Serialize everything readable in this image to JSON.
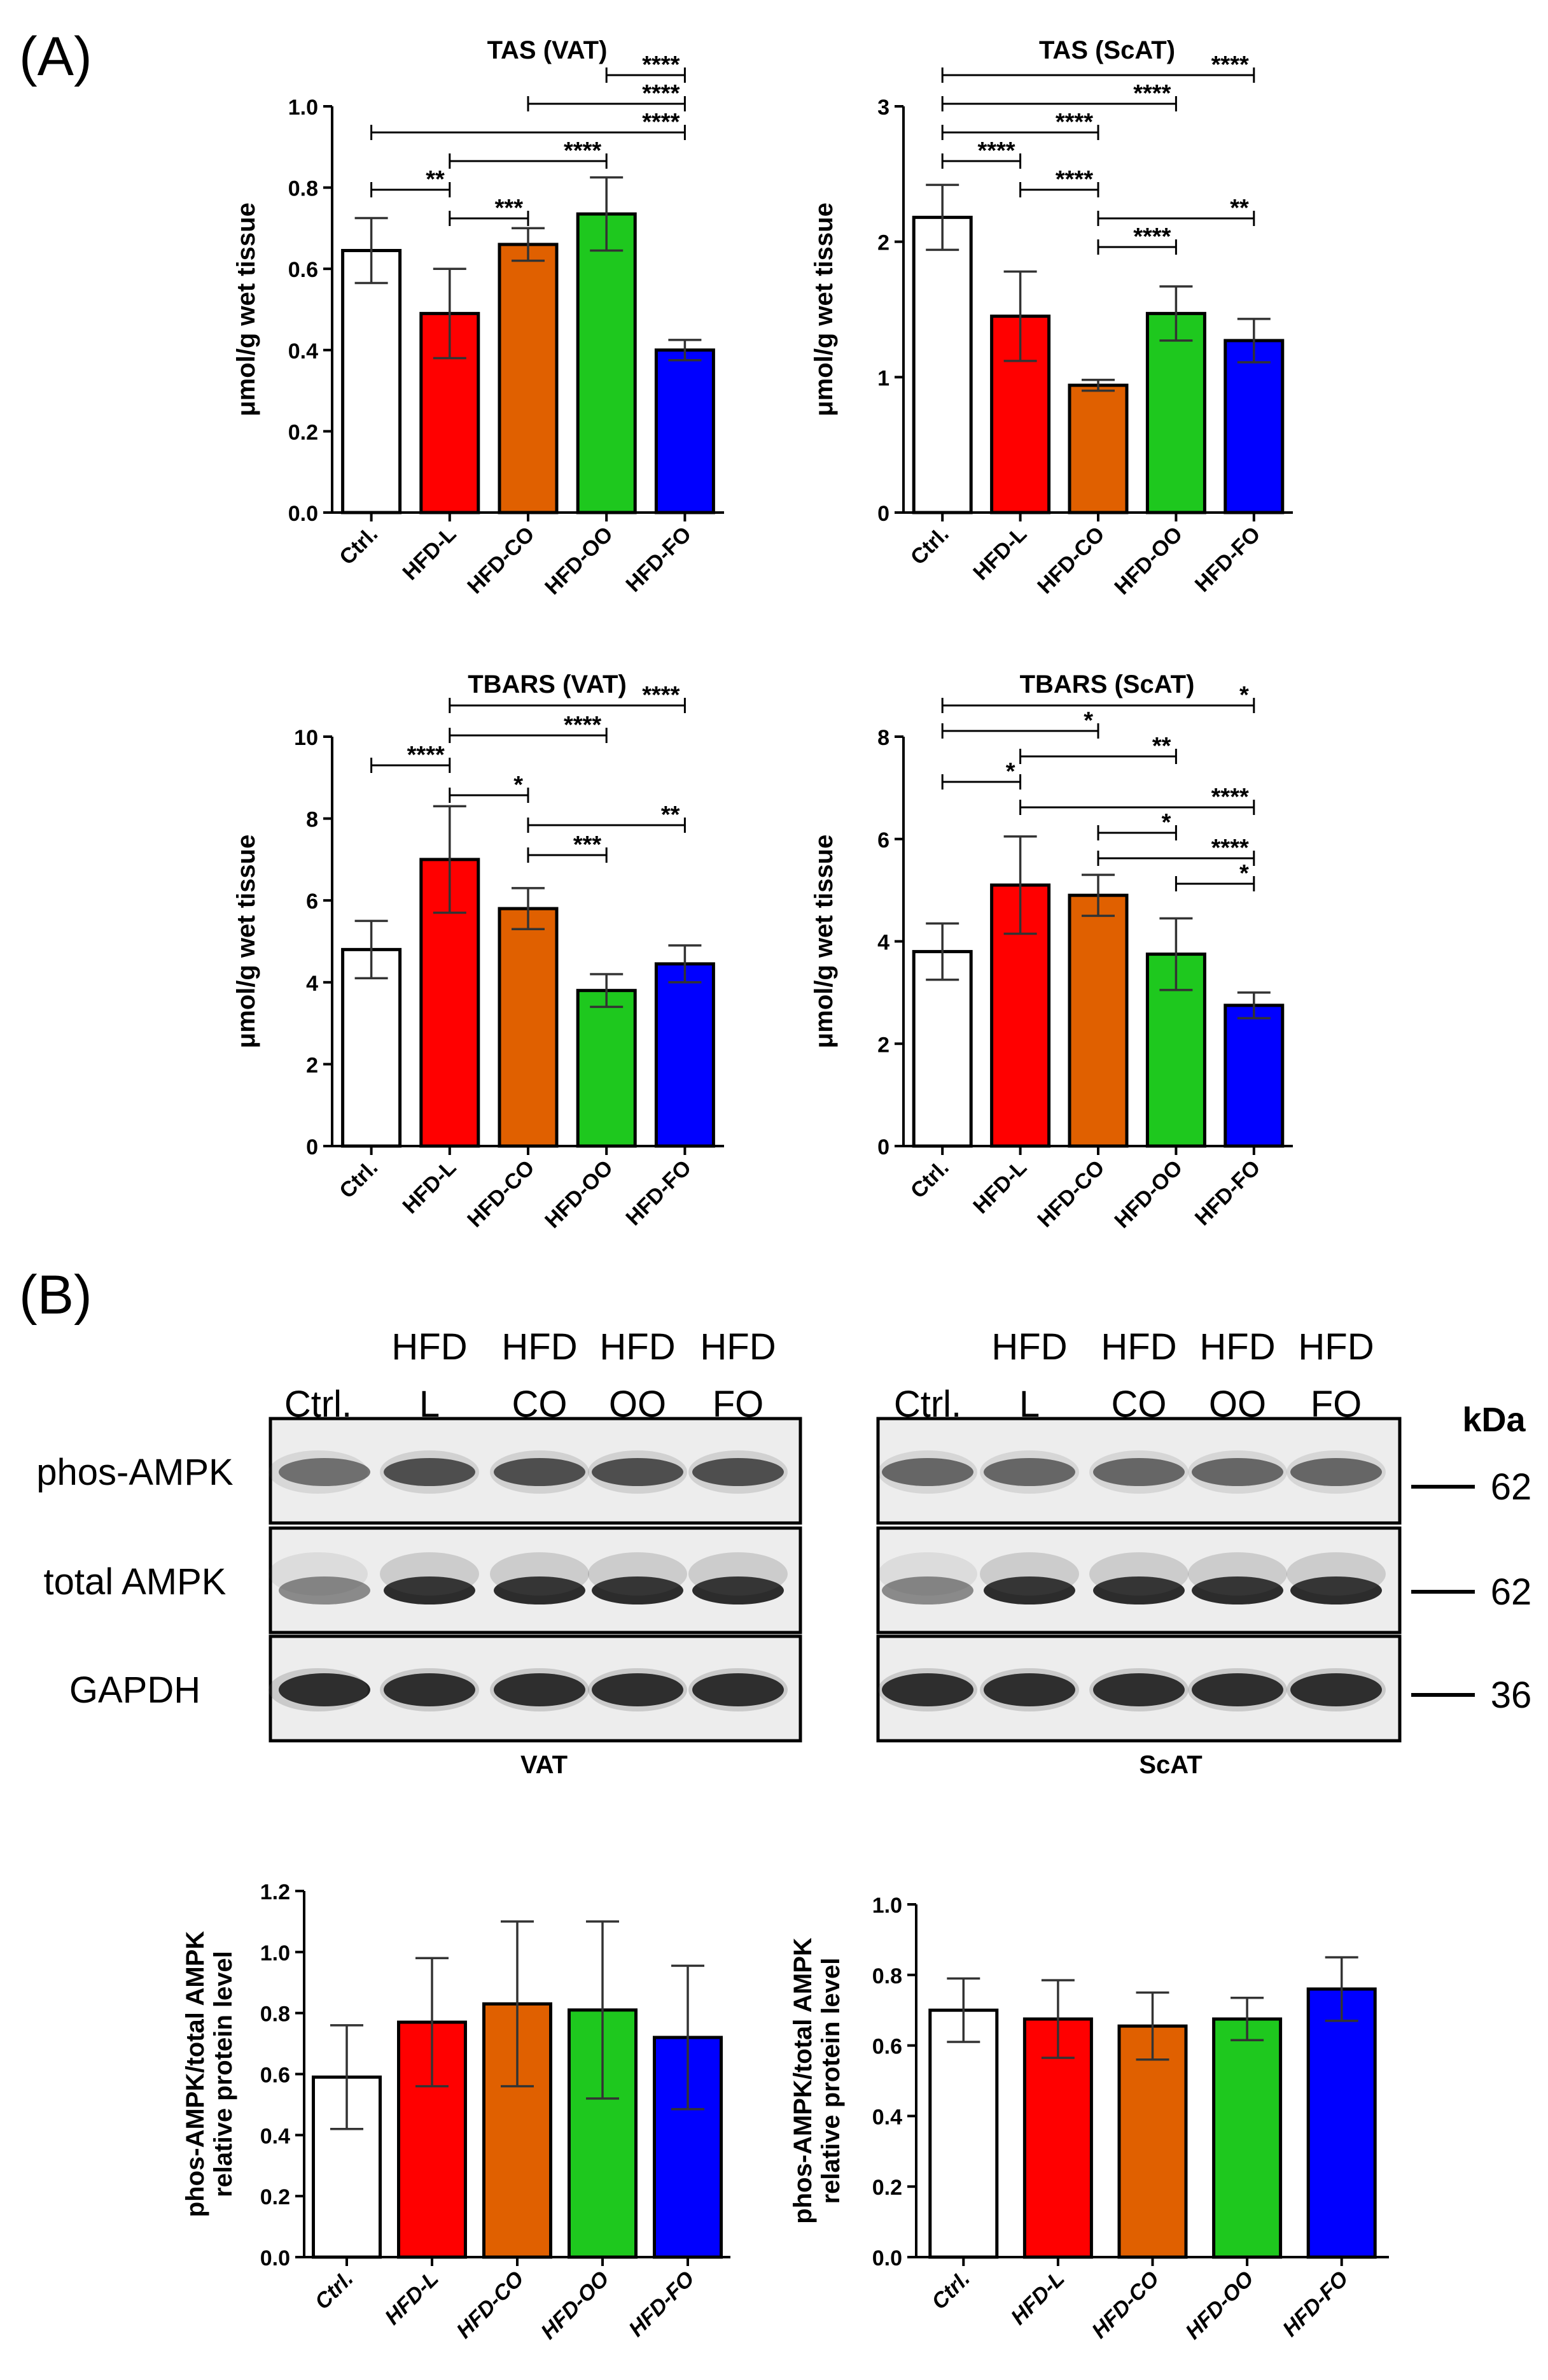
{
  "panel_labels": {
    "a": "(A)",
    "b": "(B)"
  },
  "colors": {
    "Ctrl.": "#ffffff",
    "HFD-L": "#ff0000",
    "HFD-CO": "#e06000",
    "HFD-OO": "#1ec81e",
    "HFD-FO": "#0000ff"
  },
  "chart_data": [
    {
      "type": "bar",
      "title": "TAS (VAT)",
      "ylabel": "μmol/g wet tissue",
      "categories": [
        "Ctrl.",
        "HFD-L",
        "HFD-CO",
        "HFD-OO",
        "HFD-FO"
      ],
      "values": [
        0.645,
        0.49,
        0.66,
        0.735,
        0.4
      ],
      "errors": [
        0.08,
        0.11,
        0.04,
        0.09,
        0.025
      ],
      "ylim": [
        0,
        1.0
      ],
      "yticks": [
        "0.0",
        "0.2",
        "0.4",
        "0.6",
        "0.8",
        "1.0"
      ],
      "significance": [
        {
          "from": 3,
          "to": 4,
          "label": "****"
        },
        {
          "from": 2,
          "to": 4,
          "label": "****"
        },
        {
          "from": 0,
          "to": 4,
          "label": "****"
        },
        {
          "from": 1,
          "to": 3,
          "label": "****"
        },
        {
          "from": 0,
          "to": 1,
          "label": "**"
        },
        {
          "from": 1,
          "to": 2,
          "label": "***"
        }
      ]
    },
    {
      "type": "bar",
      "title": "TAS (ScAT)",
      "ylabel": "μmol/g wet tissue",
      "categories": [
        "Ctrl.",
        "HFD-L",
        "HFD-CO",
        "HFD-OO",
        "HFD-FO"
      ],
      "values": [
        2.18,
        1.45,
        0.94,
        1.47,
        1.27
      ],
      "errors": [
        0.24,
        0.33,
        0.04,
        0.2,
        0.16
      ],
      "ylim": [
        0,
        3
      ],
      "yticks": [
        "0",
        "1",
        "2",
        "3"
      ],
      "significance": [
        {
          "from": 0,
          "to": 4,
          "label": "****"
        },
        {
          "from": 0,
          "to": 3,
          "label": "****"
        },
        {
          "from": 0,
          "to": 2,
          "label": "****"
        },
        {
          "from": 0,
          "to": 1,
          "label": "****"
        },
        {
          "from": 1,
          "to": 2,
          "label": "****"
        },
        {
          "from": 2,
          "to": 4,
          "label": "**"
        },
        {
          "from": 2,
          "to": 3,
          "label": "****"
        }
      ]
    },
    {
      "type": "bar",
      "title": "TBARS (VAT)",
      "ylabel": "μmol/g wet tissue",
      "categories": [
        "Ctrl.",
        "HFD-L",
        "HFD-CO",
        "HFD-OO",
        "HFD-FO"
      ],
      "values": [
        4.8,
        7.0,
        5.8,
        3.8,
        4.45
      ],
      "errors": [
        0.7,
        1.3,
        0.5,
        0.4,
        0.45
      ],
      "ylim": [
        0,
        10
      ],
      "yticks": [
        "0",
        "2",
        "4",
        "6",
        "8",
        "10"
      ],
      "significance": [
        {
          "from": 1,
          "to": 4,
          "label": "****"
        },
        {
          "from": 1,
          "to": 3,
          "label": "****"
        },
        {
          "from": 0,
          "to": 1,
          "label": "****"
        },
        {
          "from": 1,
          "to": 2,
          "label": "*"
        },
        {
          "from": 2,
          "to": 4,
          "label": "**"
        },
        {
          "from": 2,
          "to": 3,
          "label": "***"
        }
      ]
    },
    {
      "type": "bar",
      "title": "TBARS (ScAT)",
      "ylabel": "μmol/g wet tissue",
      "categories": [
        "Ctrl.",
        "HFD-L",
        "HFD-CO",
        "HFD-OO",
        "HFD-FO"
      ],
      "values": [
        3.8,
        5.1,
        4.9,
        3.75,
        2.75
      ],
      "errors": [
        0.55,
        0.95,
        0.4,
        0.7,
        0.25
      ],
      "ylim": [
        0,
        8
      ],
      "yticks": [
        "0",
        "2",
        "4",
        "6",
        "8"
      ],
      "significance": [
        {
          "from": 0,
          "to": 4,
          "label": "*"
        },
        {
          "from": 0,
          "to": 2,
          "label": "*"
        },
        {
          "from": 1,
          "to": 3,
          "label": "**"
        },
        {
          "from": 0,
          "to": 1,
          "label": "*"
        },
        {
          "from": 1,
          "to": 4,
          "label": "****"
        },
        {
          "from": 2,
          "to": 3,
          "label": "*"
        },
        {
          "from": 2,
          "to": 4,
          "label": "****"
        },
        {
          "from": 3,
          "to": 4,
          "label": "*"
        }
      ]
    },
    {
      "type": "bar",
      "title": "VAT",
      "ylabel": "phos-AMPK/total AMPK relative protein level",
      "categories": [
        "Ctrl.",
        "HFD-L",
        "HFD-CO",
        "HFD-OO",
        "HFD-FO"
      ],
      "values": [
        0.59,
        0.77,
        0.83,
        0.81,
        0.72
      ],
      "errors": [
        0.17,
        0.21,
        0.27,
        0.29,
        0.235
      ],
      "ylim": [
        0,
        1.2
      ],
      "yticks": [
        "0.0",
        "0.2",
        "0.4",
        "0.6",
        "0.8",
        "1.0",
        "1.2"
      ],
      "significance": []
    },
    {
      "type": "bar",
      "title": "ScAT",
      "ylabel": "phos-AMPK/total AMPK relative protein level",
      "categories": [
        "Ctrl.",
        "HFD-L",
        "HFD-CO",
        "HFD-OO",
        "HFD-FO"
      ],
      "values": [
        0.7,
        0.675,
        0.655,
        0.675,
        0.76
      ],
      "errors": [
        0.09,
        0.11,
        0.095,
        0.06,
        0.09
      ],
      "ylim": [
        0,
        1.0
      ],
      "yticks": [
        "0.0",
        "0.2",
        "0.4",
        "0.6",
        "0.8",
        "1.0"
      ],
      "significance": []
    }
  ],
  "western_blot": {
    "left_columns": [
      {
        "top": "",
        "bottom": "Ctrl."
      },
      {
        "top": "HFD",
        "bottom": "L"
      },
      {
        "top": "HFD",
        "bottom": "CO"
      },
      {
        "top": "HFD",
        "bottom": "OO"
      },
      {
        "top": "HFD",
        "bottom": "FO"
      }
    ],
    "right_columns": [
      {
        "top": "",
        "bottom": "Ctrl."
      },
      {
        "top": "HFD",
        "bottom": "L"
      },
      {
        "top": "HFD",
        "bottom": "CO"
      },
      {
        "top": "HFD",
        "bottom": "OO"
      },
      {
        "top": "HFD",
        "bottom": "FO"
      }
    ],
    "rows": [
      "phos-AMPK",
      "total AMPK",
      "GAPDH"
    ],
    "kda_label": "kDa",
    "markers": [
      "62",
      "62",
      "36"
    ]
  }
}
